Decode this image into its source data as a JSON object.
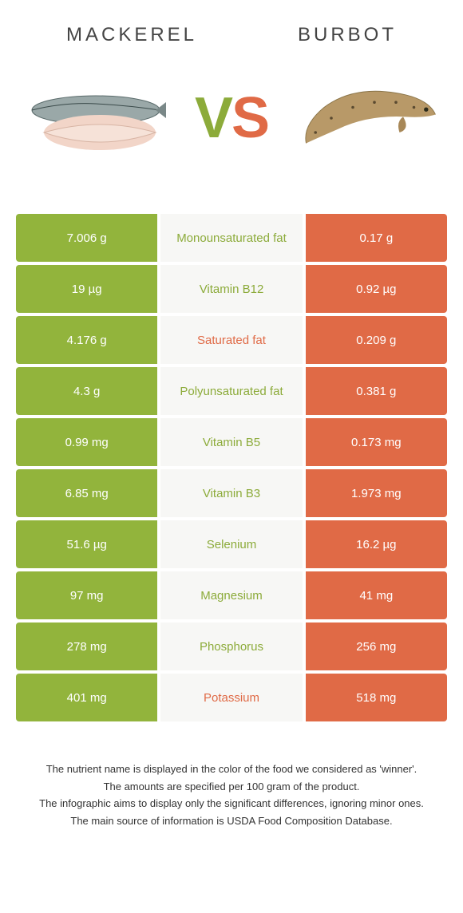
{
  "colors": {
    "left": "#92b43c",
    "right": "#e06a46",
    "mid_bg": "#f7f7f5",
    "left_text_on_mid": "#8cab3a",
    "right_text_on_mid": "#e06a46"
  },
  "header": {
    "left_title": "Mackerel",
    "right_title": "Burbot",
    "vs_v": "V",
    "vs_s": "S"
  },
  "rows": [
    {
      "left": "7.006 g",
      "label": "Monounsaturated fat",
      "right": "0.17 g",
      "winner": "left"
    },
    {
      "left": "19 µg",
      "label": "Vitamin B12",
      "right": "0.92 µg",
      "winner": "left"
    },
    {
      "left": "4.176 g",
      "label": "Saturated fat",
      "right": "0.209 g",
      "winner": "right"
    },
    {
      "left": "4.3 g",
      "label": "Polyunsaturated fat",
      "right": "0.381 g",
      "winner": "left"
    },
    {
      "left": "0.99 mg",
      "label": "Vitamin B5",
      "right": "0.173 mg",
      "winner": "left"
    },
    {
      "left": "6.85 mg",
      "label": "Vitamin B3",
      "right": "1.973 mg",
      "winner": "left"
    },
    {
      "left": "51.6 µg",
      "label": "Selenium",
      "right": "16.2 µg",
      "winner": "left"
    },
    {
      "left": "97 mg",
      "label": "Magnesium",
      "right": "41 mg",
      "winner": "left"
    },
    {
      "left": "278 mg",
      "label": "Phosphorus",
      "right": "256 mg",
      "winner": "left"
    },
    {
      "left": "401 mg",
      "label": "Potassium",
      "right": "518 mg",
      "winner": "right"
    }
  ],
  "footer": {
    "l1": "The nutrient name is displayed in the color of the food we considered as 'winner'.",
    "l2": "The amounts are specified per 100 gram of the product.",
    "l3": "The infographic aims to display only the significant differences, ignoring minor ones.",
    "l4": "The main source of information is USDA Food Composition Database."
  }
}
